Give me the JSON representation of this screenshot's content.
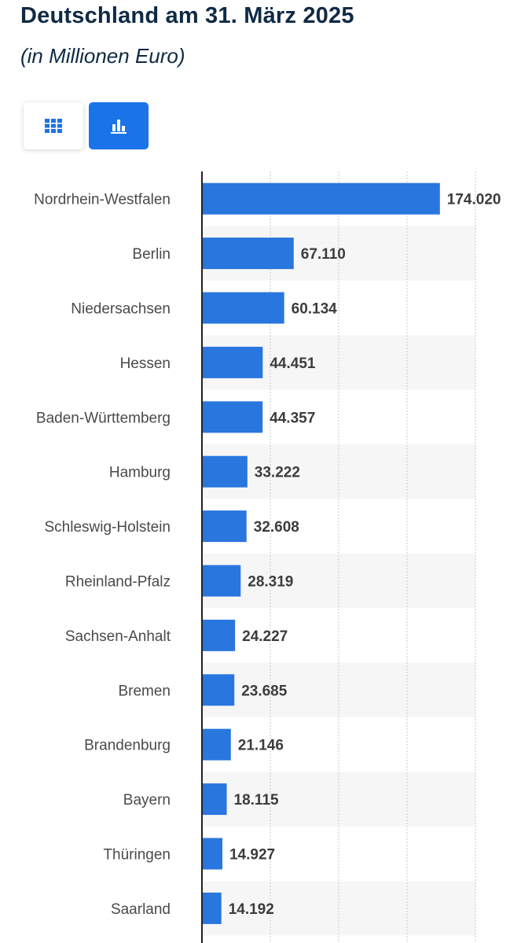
{
  "header": {
    "title": "Deutschland am 31. März 2025",
    "subtitle": "(in Millionen Euro)"
  },
  "view_toggle": {
    "table_icon": "grid-icon",
    "chart_icon": "bar-chart-icon",
    "active": "chart",
    "accent_color": "#1a73e8"
  },
  "chart_data": {
    "type": "bar",
    "orientation": "horizontal",
    "categories": [
      "Nordrhein-Westfalen",
      "Berlin",
      "Niedersachsen",
      "Hessen",
      "Baden-Württemberg",
      "Hamburg",
      "Schleswig-Holstein",
      "Rheinland-Pfalz",
      "Sachsen-Anhalt",
      "Bremen",
      "Brandenburg",
      "Bayern",
      "Thüringen",
      "Saarland"
    ],
    "values": [
      174020,
      67110,
      60134,
      44451,
      44357,
      33222,
      32608,
      28319,
      24227,
      23685,
      21146,
      18115,
      14927,
      14192
    ],
    "value_labels": [
      "174.020",
      "67.110",
      "60.134",
      "44.451",
      "44.357",
      "33.222",
      "32.608",
      "28.319",
      "24.227",
      "23.685",
      "21.146",
      "18.115",
      "14.927",
      "14.192"
    ],
    "xlim": [
      0,
      200000
    ],
    "grid": true,
    "bar_color": "#2976de",
    "stripe_color": "#f6f6f6"
  }
}
